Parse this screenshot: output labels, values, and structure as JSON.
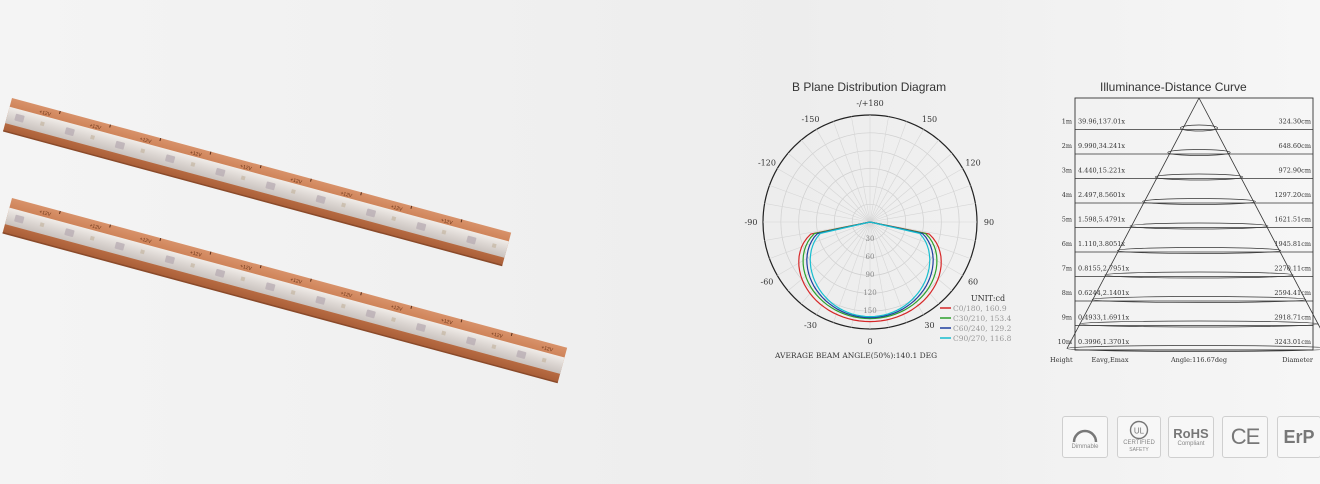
{
  "strip": {
    "marking": "+12V"
  },
  "polar": {
    "title": "B Plane Distribution Diagram",
    "angles": [
      "-/+180",
      "150",
      "120",
      "90",
      "60",
      "30",
      "0",
      "-30",
      "-60",
      "-90",
      "-120",
      "-150"
    ],
    "radial_labels": [
      "30",
      "60",
      "90",
      "120",
      "150"
    ],
    "unit": "UNIT:cd",
    "legend": [
      {
        "label": "C0/180, 160.9",
        "color": "#d62728"
      },
      {
        "label": "C30/210, 153.4",
        "color": "#2ca02c"
      },
      {
        "label": "C60/240, 129.2",
        "color": "#1f3f9f"
      },
      {
        "label": "C90/270, 116.8",
        "color": "#17becf"
      }
    ],
    "beam_angle": "AVERAGE BEAM ANGLE(50%):140.1 DEG"
  },
  "illuminance": {
    "title": "Illuminance-Distance Curve",
    "rows": [
      {
        "height": "1m",
        "value": "39.96,137.01x",
        "diameter": "324.30cm"
      },
      {
        "height": "2m",
        "value": "9.990,34.241x",
        "diameter": "648.60cm"
      },
      {
        "height": "3m",
        "value": "4.440,15.221x",
        "diameter": "972.90cm"
      },
      {
        "height": "4m",
        "value": "2.497,8.5601x",
        "diameter": "1297.20cm"
      },
      {
        "height": "5m",
        "value": "1.598,5.4791x",
        "diameter": "1621.51cm"
      },
      {
        "height": "6m",
        "value": "1.110,3.8051x",
        "diameter": "1945.81cm"
      },
      {
        "height": "7m",
        "value": "0.8155,2.7951x",
        "diameter": "2270.11cm"
      },
      {
        "height": "8m",
        "value": "0.6244,2.1401x",
        "diameter": "2594.41cm"
      },
      {
        "height": "9m",
        "value": "0.4933,1.6911x",
        "diameter": "2918.71cm"
      },
      {
        "height": "10m",
        "value": "0.3996,1.3701x",
        "diameter": "3243.01cm"
      }
    ],
    "footer": {
      "height": "Height",
      "eavg": "Eavg,Emax",
      "angle": "Angle:116.67deg",
      "diameter": "Diameter"
    }
  },
  "badges": {
    "dimmable": "Dimmable",
    "ul_mark": "UL",
    "ul_certified": "CERTIFIED",
    "ul_safety": "SAFETY",
    "rohs": "RoHS",
    "rohs_sub": "Compliant",
    "ce": "CE",
    "erp": "ErP"
  }
}
